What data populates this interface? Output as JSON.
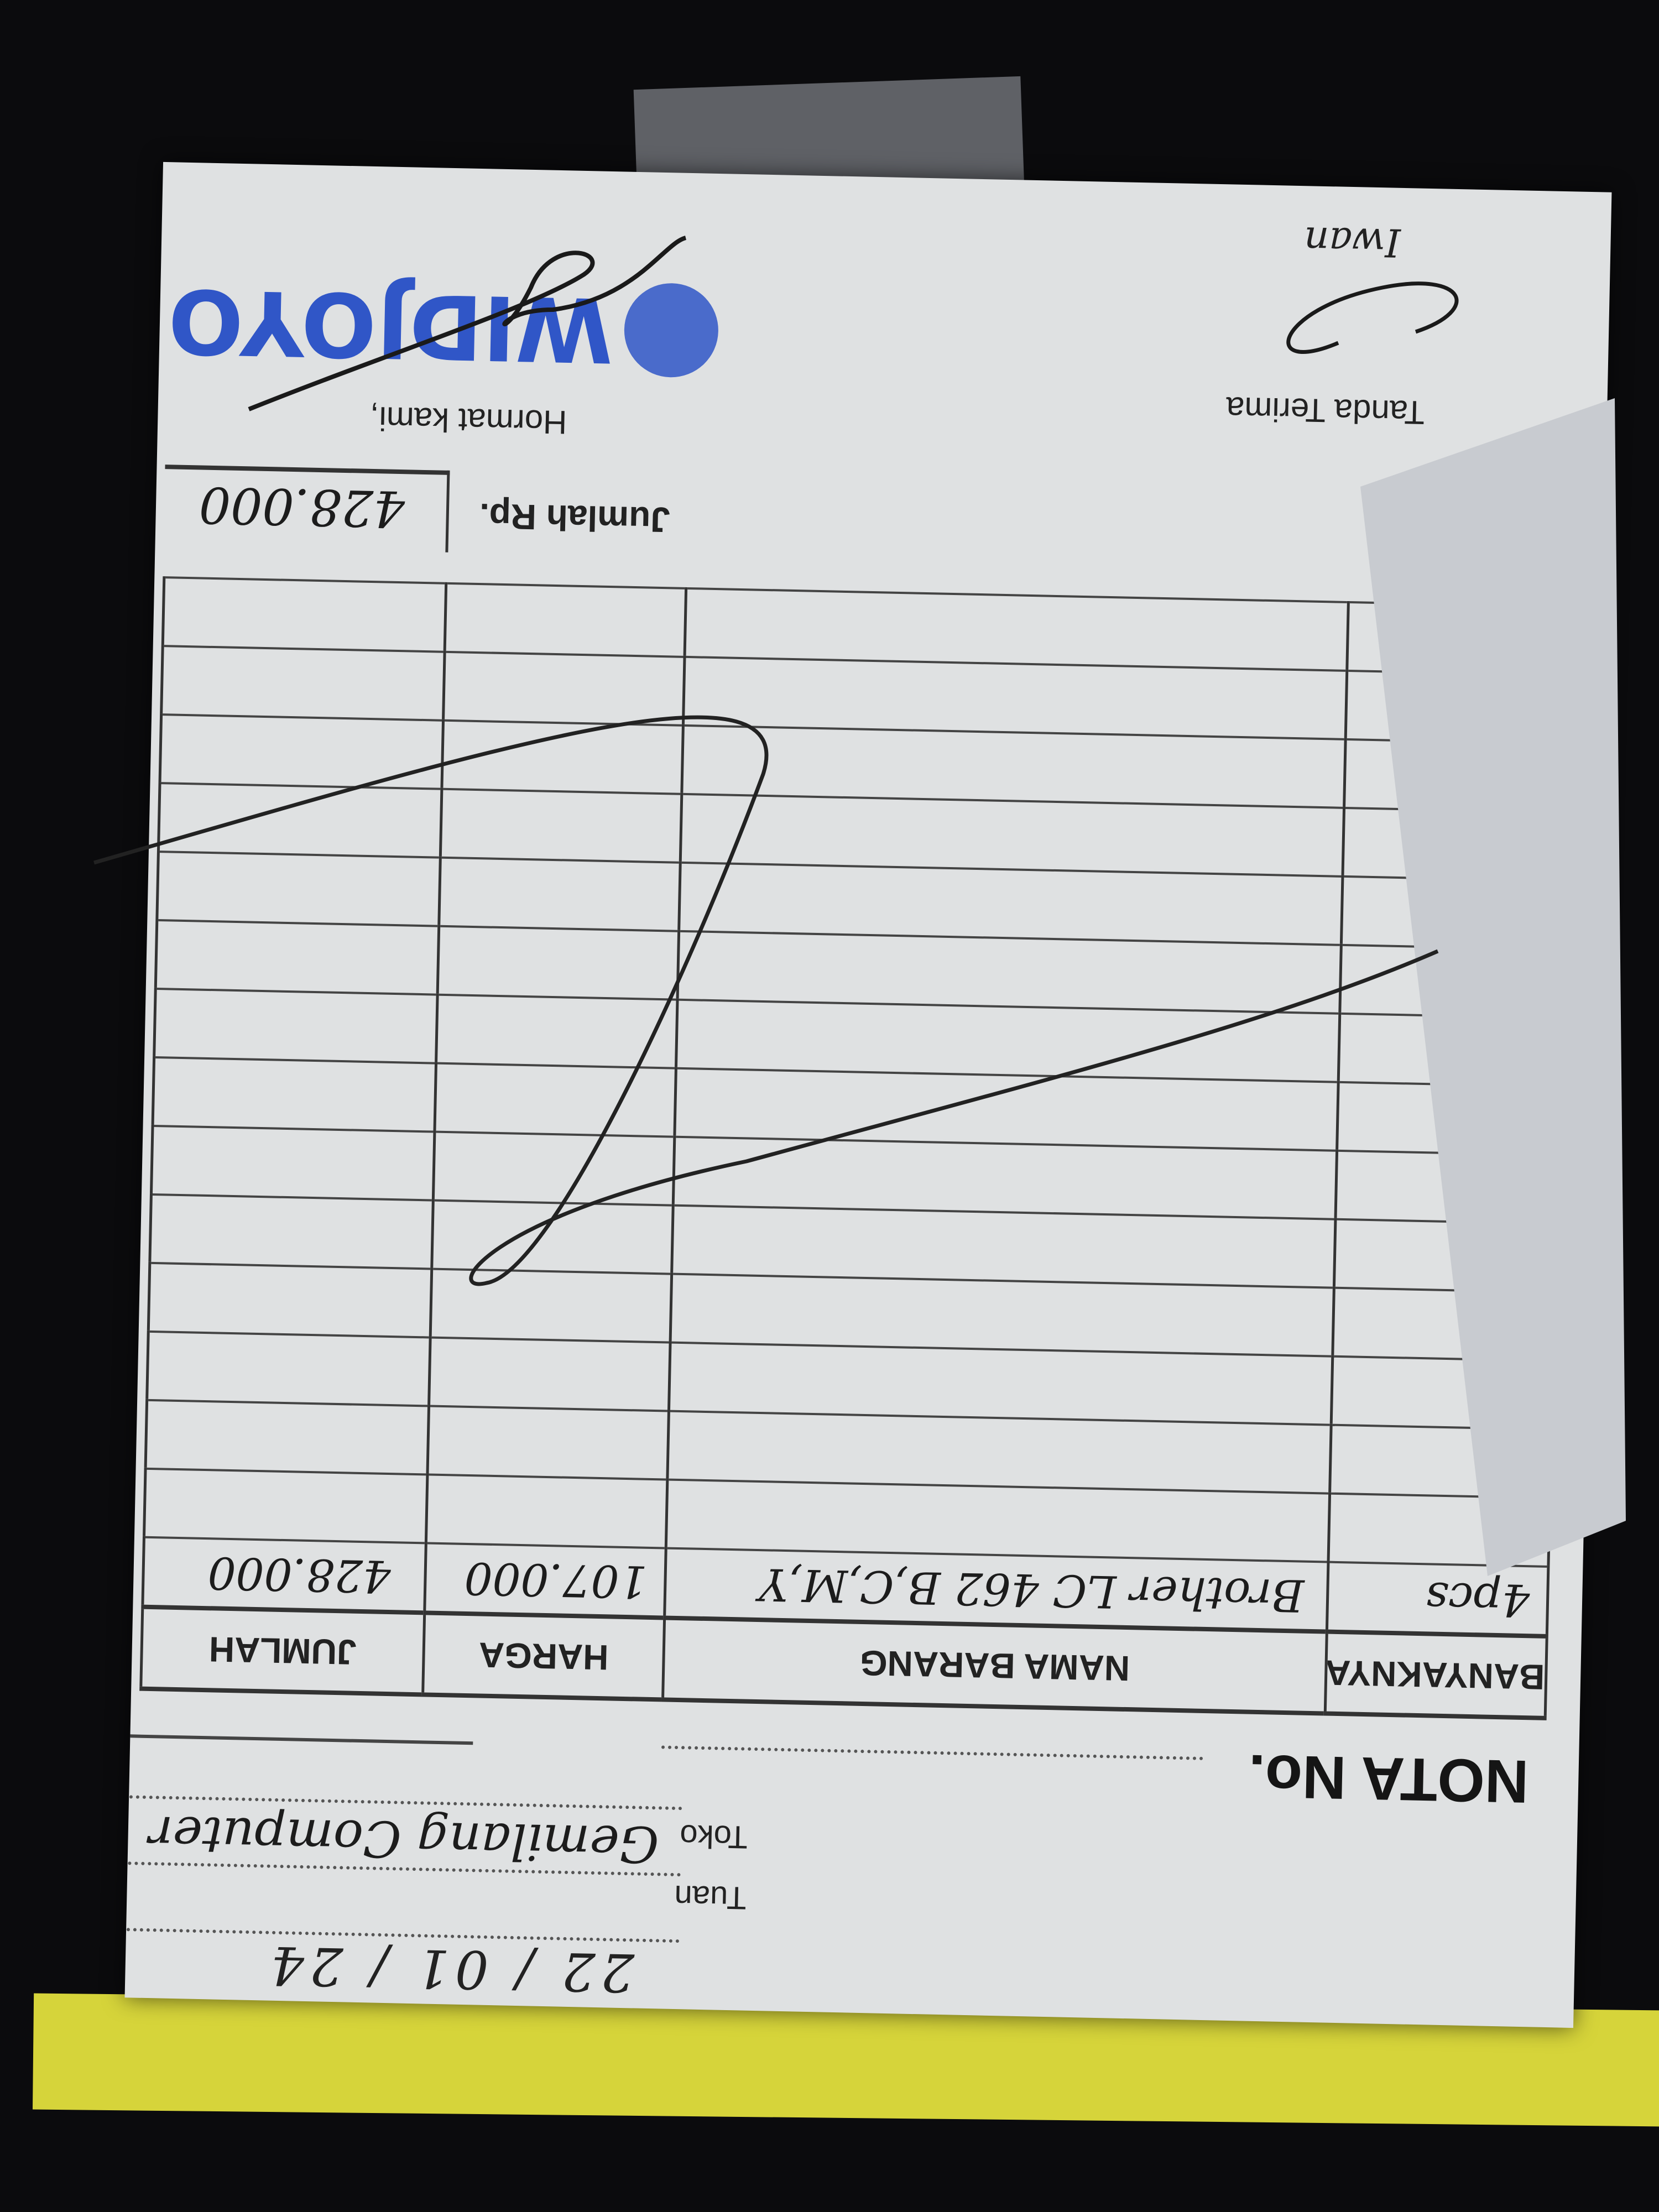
{
  "receipt": {
    "date": "22 / 01 / 24",
    "tuan_label": "Tuan",
    "toko_label": "Toko",
    "customer": "Gemilang Computer",
    "nota_label": "NOTA No.",
    "columns": [
      "BANYAKNYA",
      "NAMA BARANG",
      "HARGA",
      "JUMLAH"
    ],
    "items": [
      {
        "qty": "4pcs",
        "name": "Brother LC 462 B,C,M,Y",
        "price": "107.000",
        "total": "428.000"
      }
    ],
    "jumlah_label": "Jumlah Rp.",
    "jumlah_value": "428.000",
    "hormat_label": "Hormat kami,",
    "tanda_label": "Tanda Terima",
    "stamp_text": "WIDJOYO",
    "receiver_name": "Iwan"
  },
  "colors": {
    "paper": "#dfe1e2",
    "stamp": "#3056c7",
    "ink": "#1c1c1c",
    "yellow_sheet": "#d6d43a"
  }
}
